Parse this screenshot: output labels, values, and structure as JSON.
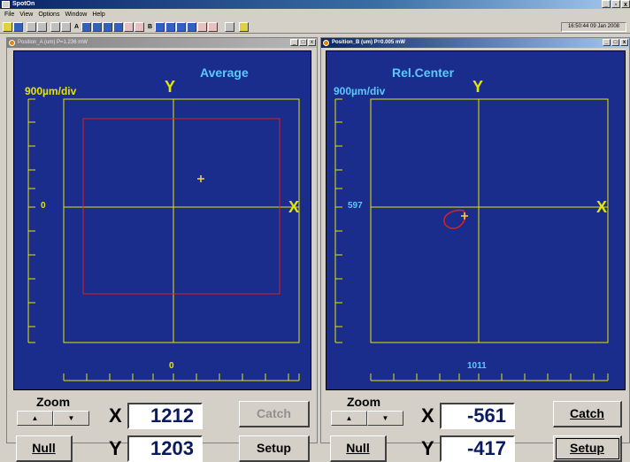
{
  "app": {
    "title": "SpotOn",
    "menu": [
      "File",
      "View",
      "Options",
      "Window",
      "Help"
    ],
    "clock": "16:50:44  09 Jan 2008",
    "toolbar_letters": [
      "A",
      "B"
    ]
  },
  "colors": {
    "plot_bg": "#1a2d8c",
    "frame_lines": "#e6e600",
    "trace_red": "#e02020",
    "mode_text": "#5cc8ff"
  },
  "panels": [
    {
      "title": "Position_A (um)   P=1.236 mW",
      "mode": "Average",
      "scale": "900µm/div",
      "axis_y": "Y",
      "axis_x": "X",
      "y_center_value": "0",
      "x_center_value": "0",
      "zoom_label": "Zoom",
      "x_label": "X",
      "x_value": "1212",
      "y_label": "Y",
      "y_value": "1203",
      "catch_label": "Catch",
      "null_label": "Null",
      "setup_label": "Setup"
    },
    {
      "title": "Position_B (um)   P=0.005 mW",
      "mode": "Rel.Center",
      "scale": "900µm/div",
      "axis_y": "Y",
      "axis_x": "X",
      "y_center_value": "597",
      "x_center_value": "1011",
      "zoom_label": "Zoom",
      "x_label": "X",
      "x_value": "-561",
      "y_label": "Y",
      "y_value": "-417",
      "catch_label": "Catch",
      "null_label": "Null",
      "setup_label": "Setup"
    }
  ]
}
